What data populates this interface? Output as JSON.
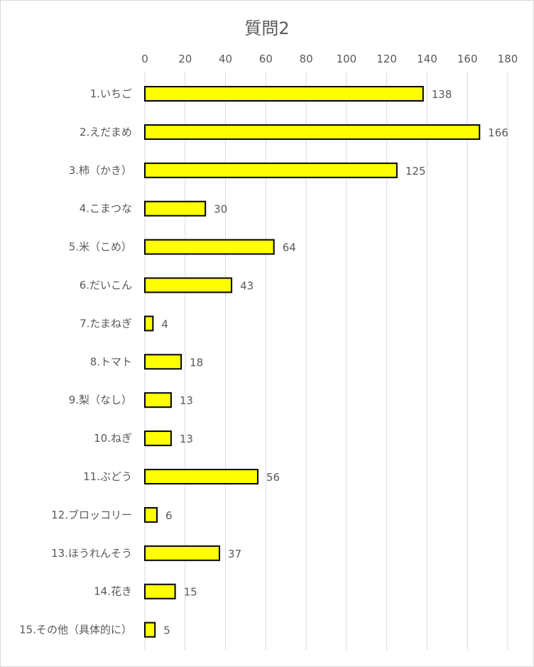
{
  "chart_data": {
    "type": "bar",
    "orientation": "horizontal",
    "title": "質問2",
    "xlabel": "",
    "ylabel": "",
    "xlim": [
      0,
      180
    ],
    "x_ticks": [
      0,
      20,
      40,
      60,
      80,
      100,
      120,
      140,
      160,
      180
    ],
    "grid": true,
    "legend": "none",
    "data_labels": true,
    "categories": [
      "1.いちご",
      "2.えだまめ",
      "3.柿（かき）",
      "4.こまつな",
      "5.米（こめ）",
      "6.だいこん",
      "7.たまねぎ",
      "8.トマト",
      "9.梨（なし）",
      "10.ねぎ",
      "11.ぶどう",
      "12.ブロッコリー",
      "13.ほうれんそう",
      "14.花き",
      "15.その他（具体的に）"
    ],
    "values": [
      138,
      166,
      125,
      30,
      64,
      43,
      4,
      18,
      13,
      13,
      56,
      6,
      37,
      15,
      5
    ],
    "colors": {
      "bar_fill": "#ffff00",
      "bar_stroke": "#000000",
      "grid": "#d9d9d9",
      "text": "#595959"
    }
  }
}
